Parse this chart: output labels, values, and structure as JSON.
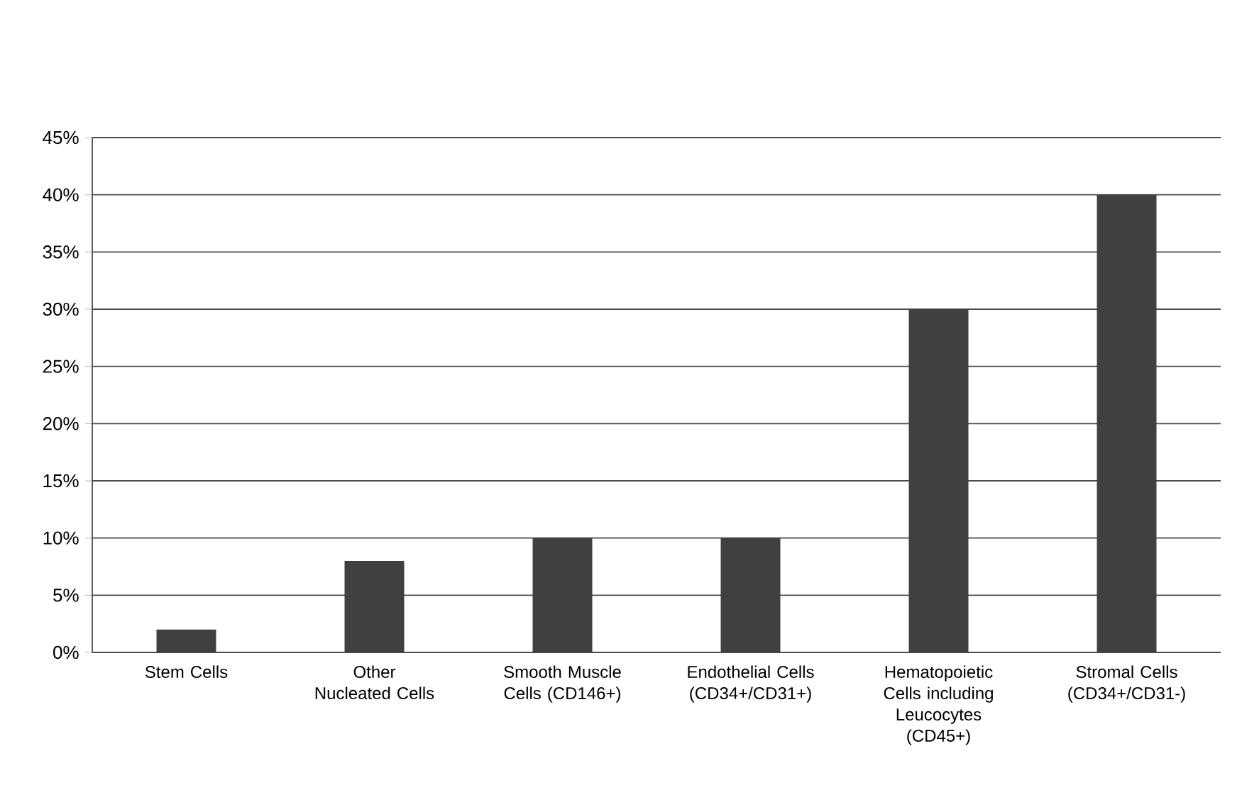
{
  "chart_data": {
    "type": "bar",
    "categories": [
      "Stem Cells",
      "Other Nucleated Cells",
      "Smooth Muscle Cells (CD146+)",
      "Endothelial Cells (CD34+/CD31+)",
      "Hematopoietic Cells including Leucocytes (CD45+)",
      "Stromal Cells (CD34+/CD31-)"
    ],
    "values": [
      2,
      8,
      10,
      10,
      30,
      40
    ],
    "color": "#404040",
    "ylim": [
      0,
      45
    ],
    "yticks": [
      {
        "value": 0,
        "label": "0%"
      },
      {
        "value": 5,
        "label": "5%"
      },
      {
        "value": 10,
        "label": "10%"
      },
      {
        "value": 15,
        "label": "15%"
      },
      {
        "value": 20,
        "label": "20%"
      },
      {
        "value": 25,
        "label": "25%"
      },
      {
        "value": 30,
        "label": "30%"
      },
      {
        "value": 35,
        "label": "35%"
      },
      {
        "value": 40,
        "label": "40%"
      },
      {
        "value": 45,
        "label": "45%"
      }
    ],
    "grid": "y"
  }
}
